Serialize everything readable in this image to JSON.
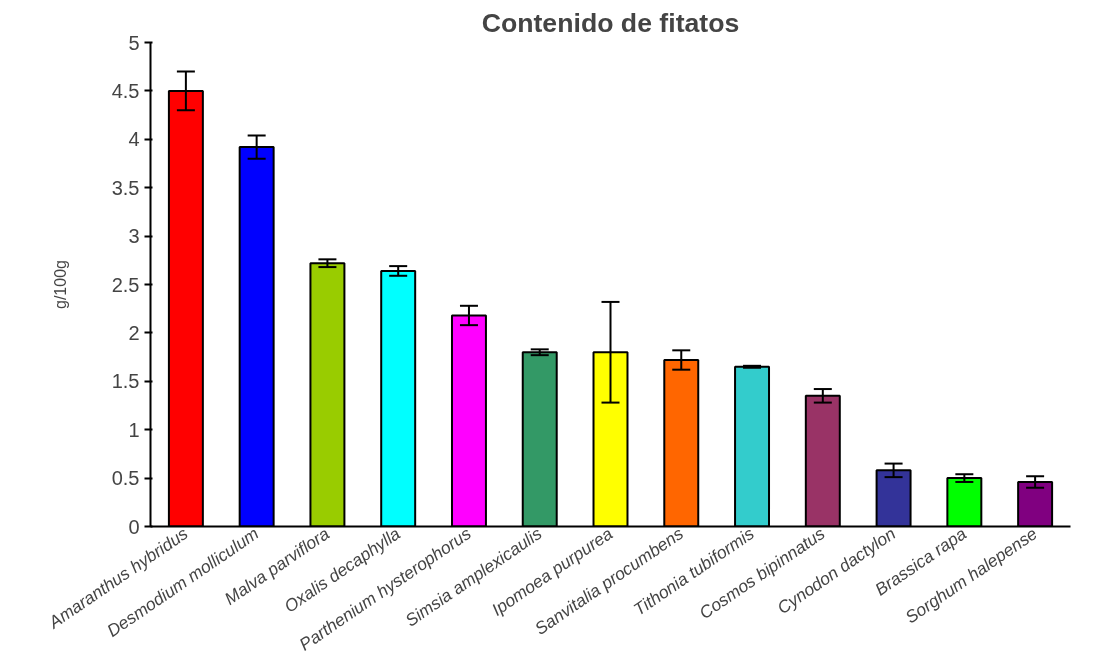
{
  "chart_data": {
    "type": "bar",
    "title": "Contenido de fitatos",
    "ylabel": "g/100g",
    "categories": [
      "Amaranthus hybridus",
      "Desmodium molliculum",
      "Malva parviflora",
      "Oxalis decaphylla",
      "Parthenium hysterophorus",
      "Simsia amplexicaulis",
      "Ipomoea purpurea",
      "Sanvitalia procumbens",
      "Tithonia tubiformis",
      "Cosmos bipinnatus",
      "Cynodon dactylon",
      "Brassica rapa",
      "Sorghum halepense"
    ],
    "values": [
      4.5,
      3.92,
      2.72,
      2.64,
      2.18,
      1.8,
      1.8,
      1.72,
      1.65,
      1.35,
      0.58,
      0.5,
      0.46
    ],
    "errors": [
      0.2,
      0.12,
      0.04,
      0.05,
      0.1,
      0.03,
      0.52,
      0.1,
      0.01,
      0.07,
      0.07,
      0.04,
      0.06
    ],
    "colors": [
      "#ff0000",
      "#0000ff",
      "#99cc00",
      "#00ffff",
      "#ff00ff",
      "#339966",
      "#ffff00",
      "#ff6600",
      "#33cccc",
      "#993366",
      "#333399",
      "#00ff00",
      "#800080"
    ],
    "ylim": [
      0,
      5
    ],
    "yticks": [
      0,
      0.5,
      1,
      1.5,
      2,
      2.5,
      3,
      3.5,
      4,
      4.5,
      5
    ],
    "grid": false
  }
}
